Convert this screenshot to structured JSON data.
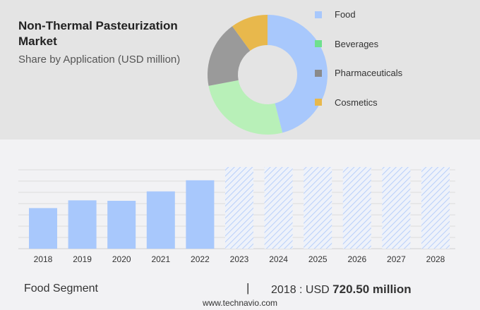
{
  "title": "Non-Thermal Pasteurization Market",
  "subtitle": "Share by Application (USD million)",
  "chart_data": [
    {
      "type": "pie",
      "donut": true,
      "title": "Non-Thermal Pasteurization Market",
      "subtitle": "Share by Application (USD million)",
      "legend_placement": "right",
      "slices": [
        {
          "name": "Food",
          "value": 46,
          "color": "#a8c8fc",
          "legend_color": "#a8c8fc"
        },
        {
          "name": "Beverages",
          "value": 26,
          "color": "#b8f0b8",
          "legend_color": "#6ee08e"
        },
        {
          "name": "Pharmaceuticals",
          "value": 18,
          "color": "#9a9a9a",
          "legend_color": "#8a8a8a"
        },
        {
          "name": "Cosmetics",
          "value": 10,
          "color": "#e8b84c",
          "legend_color": "#e8b84c"
        }
      ]
    },
    {
      "type": "bar",
      "categories": [
        "2018",
        "2019",
        "2020",
        "2021",
        "2022",
        "2023",
        "2024",
        "2025",
        "2026",
        "2027",
        "2028"
      ],
      "values": [
        720.5,
        858,
        850,
        1017,
        1214,
        null,
        null,
        null,
        null,
        null,
        null
      ],
      "forecast_categories": [
        "2023",
        "2024",
        "2025",
        "2026",
        "2027",
        "2028"
      ],
      "color": "#a8c8fc",
      "grid": true,
      "ylim": [
        0,
        1450
      ]
    }
  ],
  "footer": {
    "segment": "Food Segment",
    "separator": "|",
    "year_label": "2018 : USD ",
    "value": "720.50 million",
    "site": "www.technavio.com"
  }
}
